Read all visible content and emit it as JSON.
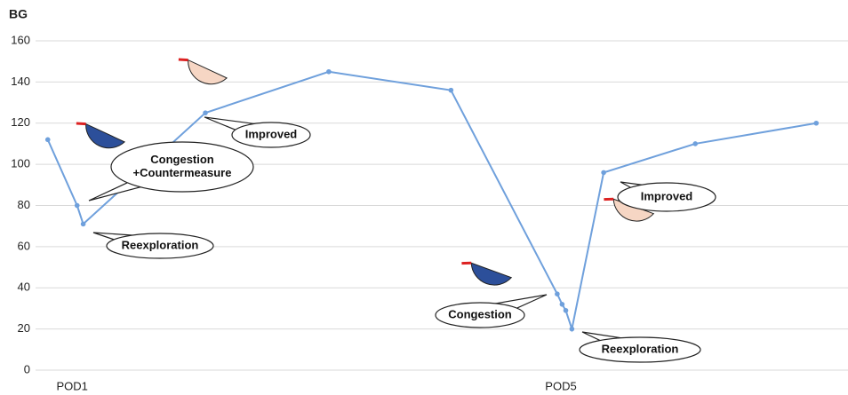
{
  "chart_data": {
    "type": "line",
    "y_label": "BG",
    "x": [
      0.8,
      1.04,
      1.09,
      2.09,
      3.1,
      4.1,
      4.97,
      5.01,
      5.04,
      5.09,
      5.35,
      6.1,
      7.09
    ],
    "series": [
      {
        "color": "#6fa0dc",
        "values": [
          112,
          80,
          71,
          125,
          145,
          136,
          37,
          32,
          29,
          20,
          96,
          110,
          120
        ]
      }
    ],
    "xlim": [
      0.7,
      7.35
    ],
    "xticks": [
      {
        "value": 1,
        "label": "POD1"
      },
      {
        "value": 5,
        "label": "POD5"
      }
    ],
    "ylim": [
      0,
      160
    ],
    "yticks": [
      0,
      20,
      40,
      60,
      80,
      100,
      120,
      140,
      160
    ],
    "grid": true,
    "annotations": [
      {
        "lines": [
          "Improved"
        ]
      },
      {
        "lines": [
          "Congestion",
          "+Countermeasure"
        ]
      },
      {
        "lines": [
          "Reexploration"
        ]
      },
      {
        "lines": [
          "Improved"
        ]
      },
      {
        "lines": [
          "Congestion"
        ]
      },
      {
        "lines": [
          "Reexploration"
        ]
      }
    ]
  }
}
